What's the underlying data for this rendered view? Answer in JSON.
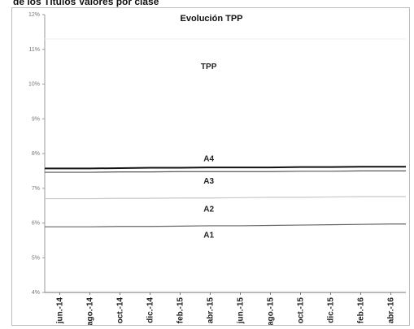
{
  "heading": "de los Títulos Valores por clase",
  "chart_data": {
    "type": "line",
    "title": "Evolución TPP",
    "xlabel": "",
    "ylabel": "",
    "x": [
      "jun.-14",
      "ago.-14",
      "oct.-14",
      "dic.-14",
      "feb.-15",
      "abr.-15",
      "jun.-15",
      "ago.-15",
      "oct.-15",
      "dic.-15",
      "feb.-16",
      "abr.-16"
    ],
    "ylim": [
      4,
      12
    ],
    "y_ticks": [
      "4%",
      "5%",
      "6%",
      "7%",
      "8%",
      "9%",
      "10%",
      "11%",
      "12%"
    ],
    "grid": false,
    "series": [
      {
        "name": "TPP",
        "values": [
          11.3,
          11.3,
          11.3,
          11.3,
          11.3,
          11.3,
          11.3,
          11.3,
          11.3,
          11.3,
          11.3,
          11.3
        ],
        "color": "#f0f0f0",
        "label_pos": [
          5.45,
          10.5
        ]
      },
      {
        "name": "A4",
        "values": [
          7.57,
          7.57,
          7.58,
          7.59,
          7.59,
          7.6,
          7.6,
          7.6,
          7.61,
          7.61,
          7.62,
          7.62
        ],
        "color": "#111111",
        "label_pos": [
          5.45,
          7.85
        ]
      },
      {
        "name": "A3",
        "values": [
          7.46,
          7.46,
          7.47,
          7.47,
          7.48,
          7.48,
          7.48,
          7.48,
          7.49,
          7.49,
          7.5,
          7.5
        ],
        "color": "#555555",
        "label_pos": [
          5.45,
          7.2
        ]
      },
      {
        "name": "A2",
        "values": [
          6.7,
          6.7,
          6.71,
          6.71,
          6.72,
          6.72,
          6.73,
          6.74,
          6.74,
          6.75,
          6.76,
          6.76
        ],
        "color": "#c8c8c8",
        "label_pos": [
          5.45,
          6.4
        ]
      },
      {
        "name": "A1",
        "values": [
          5.89,
          5.89,
          5.9,
          5.9,
          5.91,
          5.92,
          5.92,
          5.93,
          5.94,
          5.95,
          5.96,
          5.97
        ],
        "color": "#666666",
        "label_pos": [
          5.45,
          5.65
        ]
      }
    ]
  }
}
